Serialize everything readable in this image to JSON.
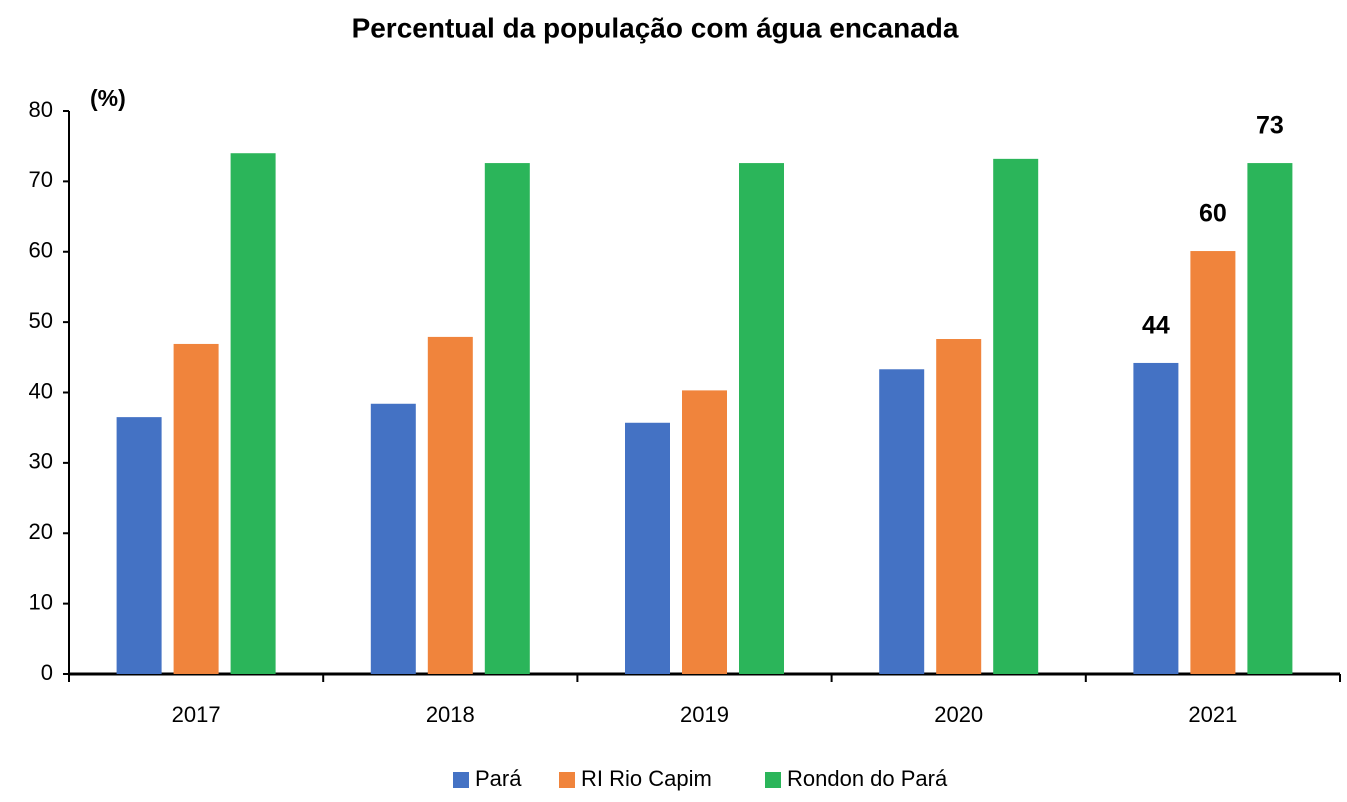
{
  "chart_data": {
    "type": "bar",
    "title": "Percentual da população com água encanada",
    "y_label": "(%)",
    "categories": [
      "2017",
      "2018",
      "2019",
      "2020",
      "2021"
    ],
    "series": [
      {
        "name": "Pará",
        "color": "#4472c4",
        "values": [
          36.5,
          38.4,
          35.7,
          43.3,
          44.2
        ],
        "value_labels": [
          null,
          null,
          null,
          null,
          "44"
        ]
      },
      {
        "name": "RI Rio Capim",
        "color": "#f0843c",
        "values": [
          46.9,
          47.9,
          40.3,
          47.6,
          60.1
        ],
        "value_labels": [
          null,
          null,
          null,
          null,
          "60"
        ]
      },
      {
        "name": "Rondon do Pará",
        "color": "#2bb55a",
        "values": [
          74.0,
          72.6,
          72.6,
          73.2,
          72.6
        ],
        "value_labels": [
          null,
          null,
          null,
          null,
          "73"
        ]
      }
    ],
    "ylim": [
      0,
      80
    ],
    "yticks": [
      0,
      10,
      20,
      30,
      40,
      50,
      60,
      70,
      80
    ],
    "grid": false,
    "legend": "bottom"
  }
}
